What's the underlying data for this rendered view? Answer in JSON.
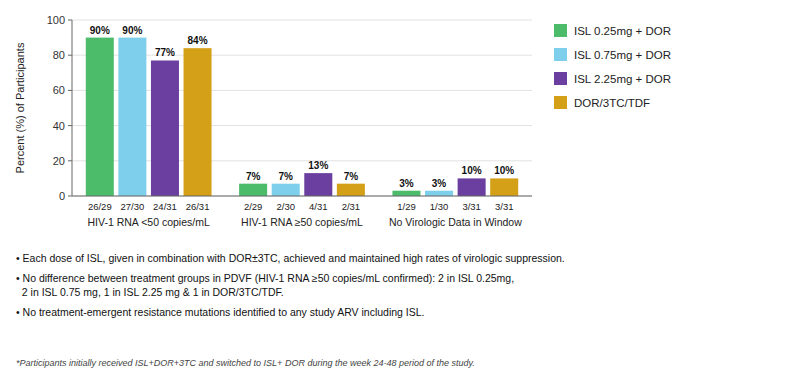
{
  "chart_data": {
    "type": "bar",
    "ylabel": "Percent (%) of Participants",
    "categories": [
      "HIV-1 RNA <50 copies/mL",
      "HIV-1 RNA ≥50 copies/mL",
      "No Virologic Data in Window"
    ],
    "series": [
      {
        "name": "ISL 0.25mg + DOR",
        "color": "#4CBB6A",
        "values": [
          90,
          7,
          3
        ],
        "value_labels": [
          "90%",
          "7%",
          "3%"
        ],
        "annotations": [
          "26/29",
          "2/29",
          "1/29"
        ]
      },
      {
        "name": "ISL 0.75mg + DOR",
        "color": "#7ECFEC",
        "values": [
          90,
          7,
          3
        ],
        "value_labels": [
          "90%",
          "7%",
          "3%"
        ],
        "annotations": [
          "27/30",
          "2/30",
          "1/30"
        ]
      },
      {
        "name": "ISL 2.25mg + DOR",
        "color": "#6B3FA0",
        "values": [
          77,
          13,
          10
        ],
        "value_labels": [
          "77%",
          "13%",
          "10%"
        ],
        "annotations": [
          "24/31",
          "4/31",
          "3/31"
        ]
      },
      {
        "name": "DOR/3TC/TDF",
        "color": "#D4A017",
        "values": [
          84,
          7,
          10
        ],
        "value_labels": [
          "84%",
          "7%",
          "10%"
        ],
        "annotations": [
          "26/31",
          "2/31",
          "3/31"
        ]
      }
    ],
    "ylim": [
      0,
      100
    ],
    "yticks": [
      0,
      20,
      40,
      60,
      80,
      100
    ],
    "grid": true,
    "legend": "right",
    "data_labels": true,
    "footnotes": [
      "• Each dose of ISL, given in combination with DOR±3TC, achieved and maintained high rates of virologic suppression.",
      "• No difference between treatment groups in PDVF (HIV-1 RNA ≥50 copies/mL confirmed): 2 in ISL 0.25mg,\n  2 in ISL 0.75 mg, 1 in ISL 2.25 mg & 1 in DOR/3TC/TDF.",
      "• No treatment-emergent resistance mutations identified to any study ARV including ISL."
    ],
    "note": "*Participants initially received ISL+DOR+3TC and switched to ISL+ DOR during the week 24-48 period of the study."
  }
}
